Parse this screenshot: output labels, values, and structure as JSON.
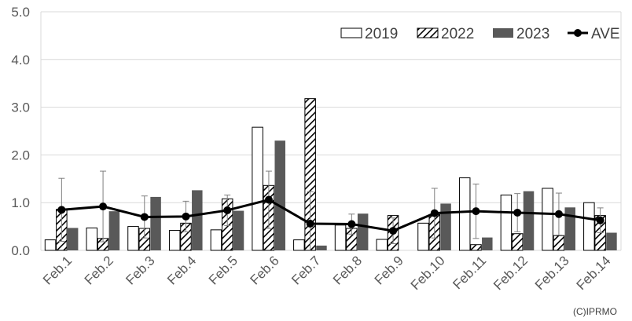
{
  "chart_data": {
    "type": "bar",
    "title": "",
    "xlabel": "",
    "ylabel": "",
    "ylim": [
      0,
      5
    ],
    "yticks": [
      "0.0",
      "1.0",
      "2.0",
      "3.0",
      "4.0",
      "5.0"
    ],
    "grid": true,
    "legend_position": "top-right",
    "categories": [
      "Feb.1",
      "Feb.2",
      "Feb.3",
      "Feb.4",
      "Feb.5",
      "Feb.6",
      "Feb.7",
      "Feb.8",
      "Feb.9",
      "Feb.10",
      "Feb.11",
      "Feb.12",
      "Feb.13",
      "Feb.14"
    ],
    "series": [
      {
        "name": "2019",
        "kind": "bar",
        "pattern": "hollow",
        "color": "#ffffff",
        "stroke": "#000000",
        "values": [
          0.22,
          0.47,
          0.5,
          0.42,
          0.43,
          2.58,
          0.22,
          0.53,
          0.23,
          0.57,
          1.52,
          1.16,
          1.3,
          1.0
        ]
      },
      {
        "name": "2022",
        "kind": "bar",
        "pattern": "hatch",
        "color": "#000000",
        "stroke": "#000000",
        "values": [
          0.86,
          0.25,
          0.46,
          0.57,
          1.08,
          1.36,
          3.18,
          0.46,
          0.73,
          0.75,
          0.12,
          0.35,
          0.31,
          0.73
        ]
      },
      {
        "name": "2023",
        "kind": "bar",
        "pattern": "solid",
        "color": "#595959",
        "stroke": "#595959",
        "values": [
          0.47,
          0.82,
          1.12,
          1.26,
          0.83,
          2.3,
          0.1,
          0.77,
          0.0,
          0.98,
          0.27,
          1.24,
          0.9,
          0.37
        ]
      },
      {
        "name": "AVE",
        "kind": "line",
        "color": "#000000",
        "values": [
          0.85,
          0.92,
          0.7,
          0.71,
          0.84,
          1.06,
          0.56,
          0.55,
          0.41,
          0.78,
          0.82,
          0.79,
          0.76,
          0.63
        ],
        "error_upper": [
          1.51,
          1.66,
          1.14,
          1.03,
          1.16,
          1.66,
          1.23,
          0.76,
          0.68,
          1.3,
          1.39,
          1.19,
          1.2,
          0.89
        ],
        "error_lower": [
          0.19,
          0.18,
          0.26,
          0.39,
          0.52,
          0.46,
          -0.11,
          0.34,
          0.14,
          0.26,
          0.25,
          0.39,
          0.32,
          0.37
        ]
      }
    ],
    "credit": "(C)IPRMO"
  }
}
